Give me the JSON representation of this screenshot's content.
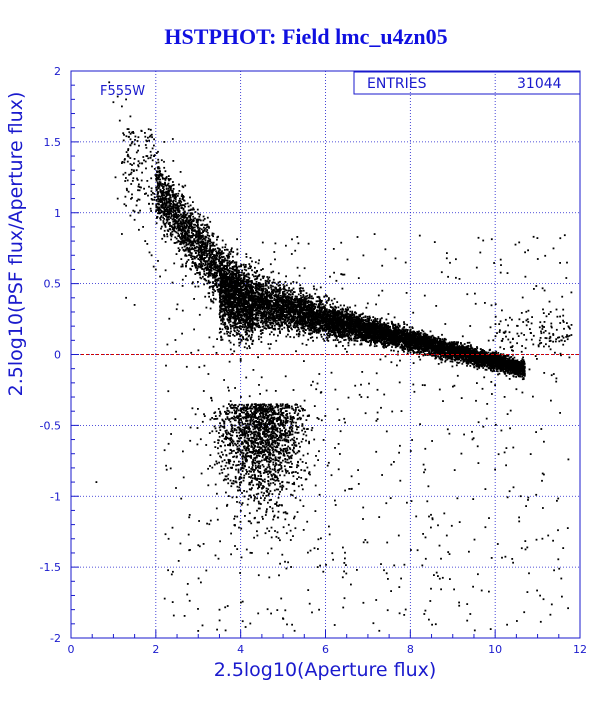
{
  "title": "HSTPHOT: Field lmc_u4zn05",
  "chart_data": {
    "type": "scatter",
    "title": "HSTPHOT: Field lmc_u4zn05",
    "xlabel": "2.5log10(Aperture flux)",
    "ylabel": "2.5log10(PSF flux/Aperture flux)",
    "xlim": [
      0,
      12
    ],
    "ylim": [
      -2,
      2
    ],
    "xticks": [
      "0",
      "2",
      "4",
      "6",
      "8",
      "10",
      "12"
    ],
    "yticks": [
      "-2",
      "-1.5",
      "-1",
      "-0.5",
      "0",
      "0.5",
      "1",
      "1.5",
      "2"
    ],
    "grid": true,
    "reference_line": {
      "y": 0,
      "color": "#d00000",
      "style": "dashed"
    },
    "filter_label": "F555W",
    "stats_box": {
      "label": "ENTRIES",
      "value": "31044"
    },
    "point_color": "#000000",
    "axis_color": "#1a1acd",
    "series": [
      {
        "points": [
          [
            0.9,
            1.92
          ],
          [
            1.0,
            1.78
          ],
          [
            1.1,
            1.82
          ],
          [
            1.2,
            1.75
          ],
          [
            1.3,
            1.8
          ],
          [
            1.4,
            1.68
          ],
          [
            1.15,
            1.65
          ],
          [
            1.25,
            1.55
          ],
          [
            1.35,
            1.45
          ],
          [
            1.45,
            1.5
          ],
          [
            1.5,
            1.38
          ],
          [
            1.55,
            1.3
          ],
          [
            1.6,
            1.2
          ],
          [
            1.2,
            1.35
          ],
          [
            1.1,
            1.1
          ],
          [
            1.3,
            1.05
          ],
          [
            1.4,
            0.98
          ],
          [
            1.5,
            0.95
          ],
          [
            1.6,
            0.88
          ],
          [
            1.7,
            0.9
          ],
          [
            1.75,
            0.8
          ],
          [
            1.8,
            0.78
          ],
          [
            1.85,
            0.72
          ],
          [
            1.9,
            0.7
          ],
          [
            1.95,
            0.62
          ],
          [
            2.0,
            0.6
          ],
          [
            2.05,
            0.66
          ],
          [
            2.1,
            0.55
          ],
          [
            1.3,
            0.4
          ],
          [
            1.5,
            0.35
          ],
          [
            1.2,
            0.85
          ],
          [
            1.05,
            1.25
          ],
          [
            2.2,
            1.5
          ],
          [
            2.4,
            1.52
          ],
          [
            2.6,
            0.62
          ],
          [
            1.8,
            1.4
          ],
          [
            0.6,
            -0.9
          ],
          [
            2.3,
            -1.3
          ],
          [
            3.0,
            -1.95
          ],
          [
            3.5,
            -1.8
          ]
        ]
      }
    ]
  }
}
